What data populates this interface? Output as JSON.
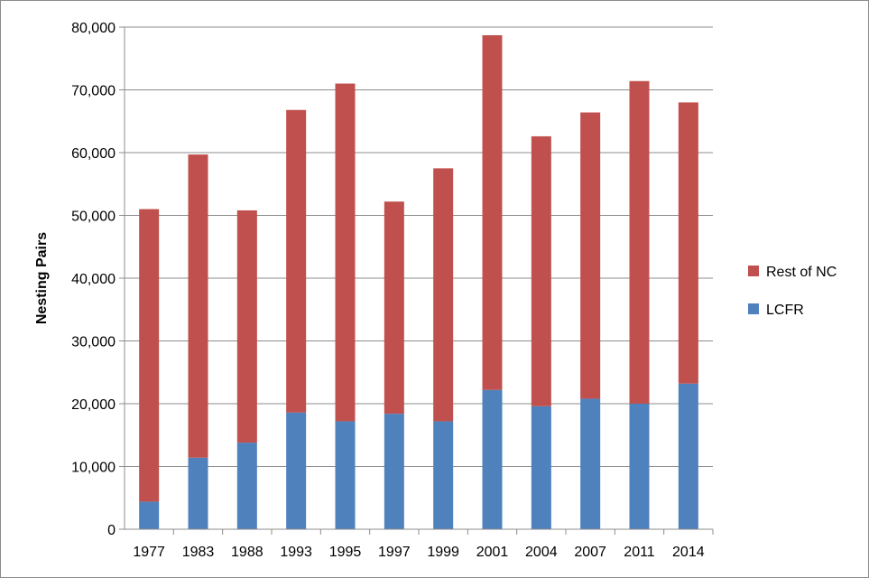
{
  "chart_data": {
    "type": "bar",
    "stacked": true,
    "title": "",
    "xlabel": "",
    "ylabel": "Nesting Pairs",
    "ylim": [
      0,
      80000
    ],
    "yticks": [
      "0",
      "10,000",
      "20,000",
      "30,000",
      "40,000",
      "50,000",
      "60,000",
      "70,000",
      "80,000"
    ],
    "grid": true,
    "legend_position": "right",
    "categories": [
      "1977",
      "1983",
      "1988",
      "1993",
      "1995",
      "1997",
      "1999",
      "2001",
      "2004",
      "2007",
      "2011",
      "2014"
    ],
    "series": [
      {
        "name": "LCFR",
        "color": "#4f81bd",
        "values": [
          4400,
          11400,
          13800,
          18600,
          17200,
          18400,
          17200,
          22200,
          19600,
          20800,
          20000,
          23200
        ]
      },
      {
        "name": "Rest of NC",
        "color": "#c0504d",
        "values": [
          46600,
          48300,
          37000,
          48200,
          53800,
          33800,
          40300,
          56500,
          43000,
          45600,
          51400,
          44800
        ]
      }
    ]
  }
}
